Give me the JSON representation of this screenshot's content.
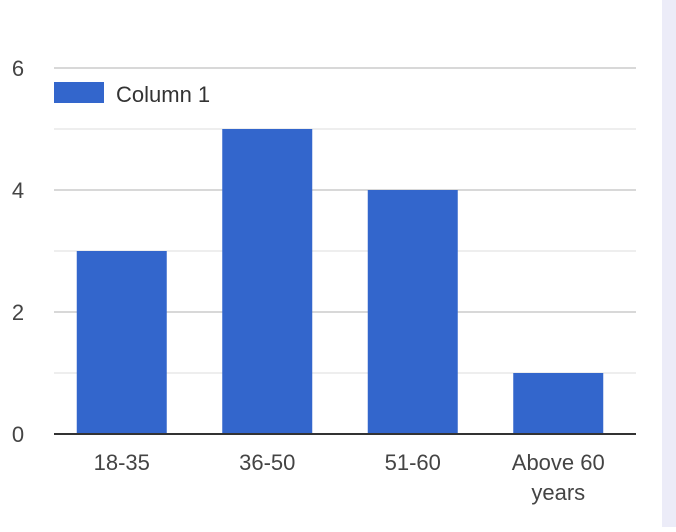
{
  "chart_data": {
    "type": "bar",
    "categories": [
      [
        "18-35"
      ],
      [
        "36-50"
      ],
      [
        "51-60"
      ],
      [
        "Above 60",
        "years"
      ]
    ],
    "series": [
      {
        "name": "Column 1",
        "values": [
          3,
          5,
          4,
          1
        ]
      }
    ],
    "ylim": [
      0,
      6
    ],
    "yticks": [
      0,
      2,
      4,
      6
    ],
    "minor_gridlines": [
      1,
      3,
      5
    ],
    "grid": true,
    "legend": "top-left",
    "colors": {
      "bar": "#3366cc",
      "gridline": "#cccccc",
      "minor_gridline": "#e8e8e8",
      "axis": "#333333",
      "text": "#444444",
      "side_panel": "#ececf8"
    }
  }
}
